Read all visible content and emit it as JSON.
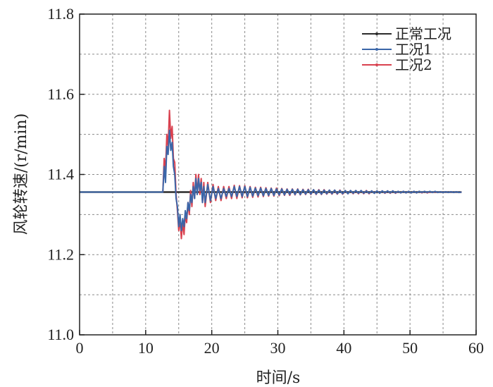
{
  "chart_data": {
    "type": "line",
    "xlabel": "时间/s",
    "ylabel": "风轮转速/(r/min)",
    "xlim": [
      0,
      60
    ],
    "ylim": [
      11.0,
      11.8
    ],
    "xticks": [
      0,
      10,
      20,
      30,
      40,
      50,
      60
    ],
    "yticks": [
      11.0,
      11.2,
      11.4,
      11.6,
      11.8
    ],
    "xtick_labels": [
      "0",
      "10",
      "20",
      "30",
      "40",
      "50",
      "60"
    ],
    "ytick_labels": [
      "11.0",
      "11.2",
      "11.4",
      "11.6",
      "11.8"
    ],
    "grid": true,
    "legend_position": "top-right",
    "series": [
      {
        "name": "正常工况",
        "color": "#2b2b2b",
        "x": [
          0,
          5,
          10,
          12.6,
          15,
          20,
          30,
          40,
          50,
          57.8
        ],
        "y": [
          11.356,
          11.356,
          11.356,
          11.356,
          11.356,
          11.356,
          11.356,
          11.356,
          11.356,
          11.356
        ]
      },
      {
        "name": "工况1",
        "color": "#3b66a8",
        "x": [
          0,
          12.6,
          12.8,
          13.0,
          13.2,
          13.4,
          13.6,
          13.8,
          14.0,
          14.2,
          14.4,
          14.6,
          14.8,
          15.0,
          15.2,
          15.4,
          15.6,
          15.8,
          16.0,
          16.2,
          16.4,
          16.6,
          16.8,
          17.0,
          17.2,
          17.4,
          17.6,
          17.8,
          18.0,
          18.2,
          18.4,
          18.6,
          18.8,
          19.0,
          19.4,
          19.8,
          20.2,
          20.6,
          21.0,
          21.4,
          21.8,
          22.2,
          22.6,
          23.0,
          23.4,
          23.8,
          24.2,
          24.6,
          25.0,
          25.4,
          25.8,
          26.2,
          26.6,
          27.0,
          27.4,
          27.8,
          28.2,
          28.6,
          29.0,
          29.4,
          29.8,
          30.2,
          30.6,
          31.0,
          31.4,
          31.8,
          32.2,
          32.6,
          33.0,
          33.4,
          33.8,
          34.2,
          34.6,
          35.0,
          35.4,
          35.8,
          36.2,
          36.6,
          37.0,
          37.4,
          37.8,
          38.2,
          38.6,
          39.0,
          39.4,
          39.8,
          40.2,
          40.6,
          41.0,
          41.4,
          41.8,
          42.2,
          42.6,
          43.0,
          43.4,
          43.8,
          44.2,
          44.6,
          45.0,
          45.4,
          45.8,
          46.2,
          46.6,
          47.0,
          47.4,
          47.8,
          48.2,
          48.6,
          49.0,
          49.4,
          49.8,
          50.2,
          50.6,
          51.0,
          51.4,
          51.8,
          52.2,
          52.6,
          53.0,
          53.4,
          53.8,
          54.2,
          54.6,
          55.0,
          55.4,
          55.8,
          56.2,
          56.6,
          57.0,
          57.4,
          57.8
        ],
        "y": [
          11.356,
          11.356,
          11.42,
          11.38,
          11.47,
          11.45,
          11.51,
          11.46,
          11.48,
          11.42,
          11.4,
          11.34,
          11.32,
          11.27,
          11.3,
          11.26,
          11.29,
          11.27,
          11.31,
          11.29,
          11.33,
          11.31,
          11.35,
          11.33,
          11.37,
          11.34,
          11.39,
          11.35,
          11.39,
          11.36,
          11.38,
          11.33,
          11.37,
          11.33,
          11.375,
          11.335,
          11.37,
          11.34,
          11.365,
          11.34,
          11.365,
          11.345,
          11.365,
          11.345,
          11.37,
          11.345,
          11.37,
          11.345,
          11.37,
          11.345,
          11.368,
          11.346,
          11.366,
          11.347,
          11.366,
          11.347,
          11.365,
          11.348,
          11.365,
          11.348,
          11.364,
          11.349,
          11.364,
          11.349,
          11.363,
          11.35,
          11.363,
          11.35,
          11.363,
          11.35,
          11.362,
          11.351,
          11.362,
          11.351,
          11.362,
          11.351,
          11.361,
          11.351,
          11.361,
          11.352,
          11.361,
          11.352,
          11.361,
          11.352,
          11.36,
          11.352,
          11.36,
          11.352,
          11.36,
          11.353,
          11.36,
          11.353,
          11.36,
          11.353,
          11.359,
          11.353,
          11.359,
          11.353,
          11.359,
          11.353,
          11.359,
          11.354,
          11.359,
          11.354,
          11.359,
          11.354,
          11.358,
          11.354,
          11.358,
          11.354,
          11.358,
          11.354,
          11.358,
          11.354,
          11.358,
          11.355,
          11.358,
          11.355,
          11.358,
          11.355,
          11.358,
          11.355,
          11.357,
          11.355,
          11.357,
          11.355,
          11.357,
          11.355,
          11.357,
          11.355,
          11.356
        ]
      },
      {
        "name": "工况2",
        "color": "#d9414f",
        "x": [
          0,
          12.6,
          12.8,
          13.0,
          13.2,
          13.4,
          13.6,
          13.8,
          14.0,
          14.2,
          14.4,
          14.6,
          14.8,
          15.0,
          15.2,
          15.4,
          15.6,
          15.8,
          16.0,
          16.2,
          16.4,
          16.6,
          16.8,
          17.0,
          17.2,
          17.4,
          17.6,
          17.8,
          18.0,
          18.2,
          18.4,
          18.6,
          18.8,
          19.0,
          19.4,
          19.8,
          20.2,
          20.6,
          21.0,
          21.4,
          21.8,
          22.2,
          22.6,
          23.0,
          23.4,
          23.8,
          24.2,
          24.6,
          25.0,
          25.4,
          25.8,
          26.2,
          26.6,
          27.0,
          27.4,
          27.8,
          28.2,
          28.6,
          29.0,
          29.4,
          29.8,
          30.2,
          30.6,
          31.0,
          31.4,
          31.8,
          32.2,
          32.6,
          33.0,
          33.4,
          33.8,
          34.2,
          34.6,
          35.0,
          35.4,
          35.8,
          36.2,
          36.6,
          37.0,
          37.4,
          37.8,
          38.2,
          38.6,
          39.0,
          39.4,
          39.8,
          40.2,
          40.6,
          41.0,
          41.4,
          41.8,
          42.2,
          42.6,
          43.0,
          43.4,
          43.8,
          44.2,
          44.6,
          45.0,
          45.4,
          45.8,
          46.2,
          46.6,
          47.0,
          47.4,
          47.8,
          48.2,
          48.6,
          49.0,
          49.4,
          49.8,
          50.2,
          50.6,
          51.0,
          51.4,
          51.8,
          52.2,
          52.6,
          53.0,
          53.4,
          53.8,
          54.2,
          54.6,
          55.0,
          55.4,
          55.8,
          56.2,
          56.6,
          57.0,
          57.4,
          57.8
        ],
        "y": [
          11.356,
          11.356,
          11.44,
          11.41,
          11.5,
          11.47,
          11.56,
          11.49,
          11.52,
          11.44,
          11.43,
          11.35,
          11.31,
          11.26,
          11.29,
          11.24,
          11.28,
          11.25,
          11.3,
          11.28,
          11.33,
          11.3,
          11.36,
          11.32,
          11.38,
          11.34,
          11.4,
          11.35,
          11.4,
          11.35,
          11.39,
          11.33,
          11.38,
          11.32,
          11.38,
          11.33,
          11.375,
          11.335,
          11.37,
          11.335,
          11.37,
          11.34,
          11.37,
          11.34,
          11.373,
          11.34,
          11.372,
          11.342,
          11.372,
          11.342,
          11.37,
          11.343,
          11.368,
          11.344,
          11.368,
          11.345,
          11.367,
          11.346,
          11.366,
          11.346,
          11.366,
          11.347,
          11.365,
          11.348,
          11.364,
          11.348,
          11.364,
          11.349,
          11.364,
          11.349,
          11.363,
          11.35,
          11.363,
          11.35,
          11.362,
          11.35,
          11.362,
          11.35,
          11.362,
          11.351,
          11.361,
          11.351,
          11.361,
          11.351,
          11.361,
          11.351,
          11.36,
          11.352,
          11.36,
          11.352,
          11.36,
          11.352,
          11.36,
          11.352,
          11.36,
          11.352,
          11.359,
          11.353,
          11.359,
          11.353,
          11.359,
          11.353,
          11.359,
          11.353,
          11.359,
          11.353,
          11.358,
          11.354,
          11.358,
          11.354,
          11.358,
          11.354,
          11.358,
          11.354,
          11.358,
          11.354,
          11.358,
          11.354,
          11.357,
          11.355,
          11.357,
          11.355,
          11.357,
          11.355,
          11.357,
          11.355,
          11.357,
          11.355,
          11.357,
          11.355,
          11.356
        ]
      }
    ]
  }
}
